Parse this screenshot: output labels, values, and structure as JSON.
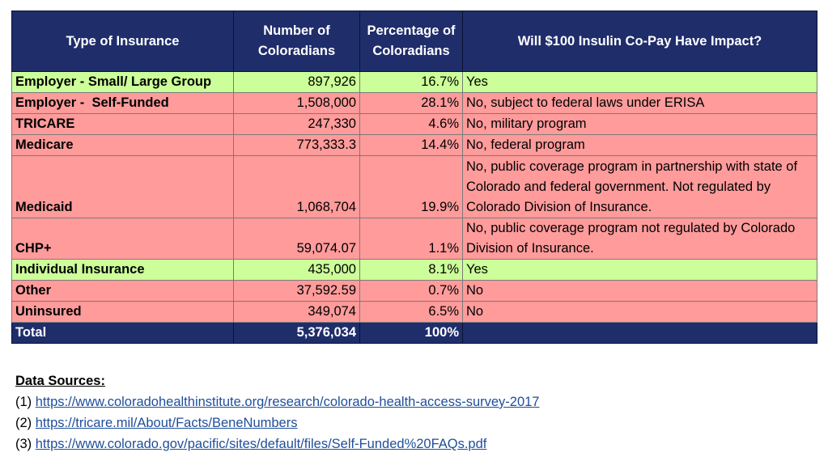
{
  "table": {
    "headers": [
      "Type of Insurance",
      "Number of\nColoradians",
      "Percentage of\nColoradians",
      "Will $100 Insulin Co-Pay Have Impact?"
    ],
    "rows": [
      {
        "type": "Employer - Small/ Large Group",
        "number": "897,926",
        "percent": "16.7%",
        "impact": "Yes",
        "status": "green"
      },
      {
        "type": "Employer -  Self-Funded",
        "number": "1,508,000",
        "percent": "28.1%",
        "impact": "No, subject to federal laws under ERISA",
        "status": "red"
      },
      {
        "type": "TRICARE",
        "number": "247,330",
        "percent": "4.6%",
        "impact": "No, military program",
        "status": "red"
      },
      {
        "type": "Medicare",
        "number": "773,333.3",
        "percent": "14.4%",
        "impact": "No, federal program",
        "status": "red"
      },
      {
        "type": "Medicaid",
        "number": "1,068,704",
        "percent": "19.9%",
        "impact": "No, public coverage program in partnership with state of Colorado and federal government. Not regulated by Colorado Division of Insurance.",
        "status": "red"
      },
      {
        "type": "CHP+",
        "number": "59,074.07",
        "percent": "1.1%",
        "impact": "No, public coverage program not regulated by Colorado Division of Insurance.",
        "status": "red"
      },
      {
        "type": "Individual Insurance",
        "number": "435,000",
        "percent": "8.1%",
        "impact": "Yes",
        "status": "green"
      },
      {
        "type": "Other",
        "number": "37,592.59",
        "percent": "0.7%",
        "impact": "No",
        "status": "red"
      },
      {
        "type": "Uninsured",
        "number": "349,074",
        "percent": "6.5%",
        "impact": "No",
        "status": "red"
      }
    ],
    "total": {
      "label": "Total",
      "number": "5,376,034",
      "percent": "100%"
    }
  },
  "sources": {
    "title": "Data Sources:",
    "items": [
      {
        "prefix": "(1) ",
        "url": "https://www.coloradohealthinstitute.org/research/colorado-health-access-survey-2017"
      },
      {
        "prefix": "(2) ",
        "url": "https://tricare.mil/About/Facts/BeneNumbers"
      },
      {
        "prefix": "(3) ",
        "url": "https://www.colorado.gov/pacific/sites/default/files/Self-Funded%20FAQs.pdf"
      }
    ]
  },
  "colors": {
    "header_bg": "#1f2d6b",
    "yes_bg": "#ccff99",
    "no_bg": "#ff9b9b",
    "link": "#1f4e9a"
  }
}
